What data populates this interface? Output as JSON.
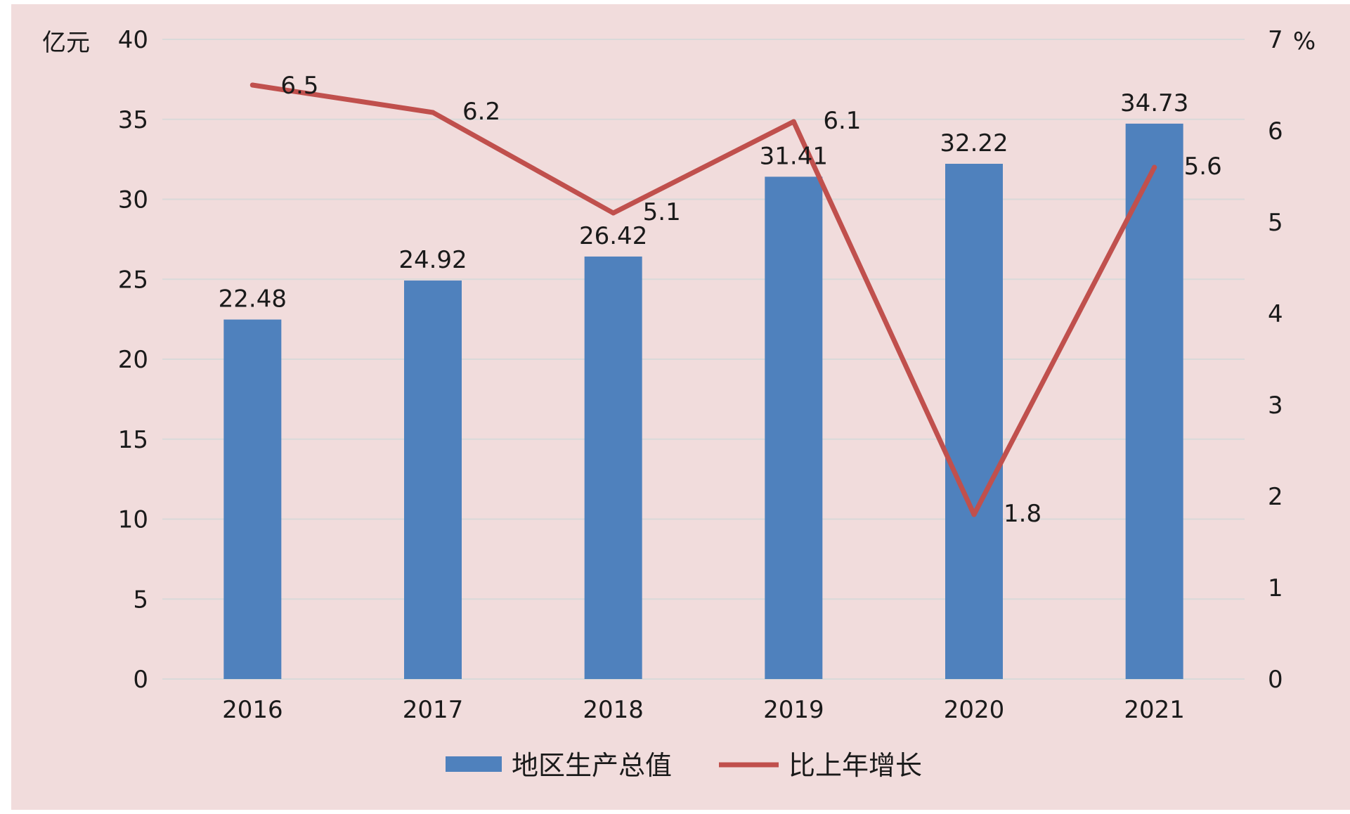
{
  "chart_data": {
    "type": "bar",
    "categories": [
      "2016",
      "2017",
      "2018",
      "2019",
      "2020",
      "2021"
    ],
    "series": [
      {
        "name": "地区生产总值",
        "type": "bar",
        "axis": "left",
        "color": "#4f81bd",
        "values": [
          22.48,
          24.92,
          26.42,
          31.41,
          32.22,
          34.73
        ],
        "labels": [
          "22.48",
          "24.92",
          "26.42",
          "31.41",
          "32.22",
          "34.73"
        ]
      },
      {
        "name": "比上年增长",
        "type": "line",
        "axis": "right",
        "color": "#c0504d",
        "values": [
          6.5,
          6.2,
          5.1,
          6.1,
          1.8,
          5.6
        ],
        "labels": [
          "6.5",
          "6.2",
          "5.1",
          "6.1",
          "1.8",
          "5.6"
        ]
      }
    ],
    "y_left": {
      "unit": "亿元",
      "ylim": [
        0,
        40
      ],
      "ticks": [
        "0",
        "5",
        "10",
        "15",
        "20",
        "25",
        "30",
        "35",
        "40"
      ]
    },
    "y_right": {
      "unit": "%",
      "ylim": [
        0,
        7
      ],
      "ticks": [
        "0",
        "1",
        "2",
        "3",
        "4",
        "5",
        "6",
        "7"
      ]
    },
    "grid": true,
    "legend": "bottom-center",
    "background": "#f1dcdc",
    "gridline_color": "#d9d9d9"
  }
}
